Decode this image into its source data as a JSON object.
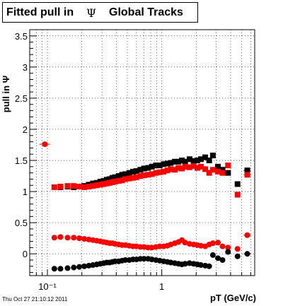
{
  "title": {
    "prefix": "Fitted pull in",
    "symbol": "Ψ",
    "suffix": "Global Tracks"
  },
  "footer": {
    "timestamp": "Thu Oct 27 21:10:12 2011"
  },
  "chart_data": {
    "type": "scatter",
    "xlabel": "pT (GeV/c)",
    "ylabel": "pull in Ψ",
    "xscale": "log",
    "xlim": [
      0.07,
      6.5
    ],
    "ylim": [
      -0.35,
      3.6
    ],
    "grid": true,
    "x_tick_labels": [
      "10⁻¹",
      "1"
    ],
    "y_tick_labels": [
      "0",
      "0.5",
      "1",
      "1.5",
      "2",
      "2.5",
      "3",
      "3.5"
    ],
    "series": [
      {
        "marker": "square",
        "color": "#000000",
        "points": [
          [
            0.13,
            1.07
          ],
          [
            0.15,
            1.08
          ],
          [
            0.17,
            1.07
          ],
          [
            0.19,
            1.08
          ],
          [
            0.21,
            1.09
          ],
          [
            0.23,
            1.11
          ],
          [
            0.25,
            1.13
          ],
          [
            0.27,
            1.14
          ],
          [
            0.29,
            1.16
          ],
          [
            0.31,
            1.17
          ],
          [
            0.33,
            1.19
          ],
          [
            0.35,
            1.2
          ],
          [
            0.37,
            1.22
          ],
          [
            0.39,
            1.23
          ],
          [
            0.42,
            1.25
          ],
          [
            0.45,
            1.27
          ],
          [
            0.48,
            1.28
          ],
          [
            0.52,
            1.3
          ],
          [
            0.56,
            1.32
          ],
          [
            0.6,
            1.33
          ],
          [
            0.65,
            1.35
          ],
          [
            0.7,
            1.37
          ],
          [
            0.76,
            1.38
          ],
          [
            0.82,
            1.4
          ],
          [
            0.89,
            1.42
          ],
          [
            0.96,
            1.42
          ],
          [
            1.04,
            1.44
          ],
          [
            1.12,
            1.45
          ],
          [
            1.2,
            1.46
          ],
          [
            1.3,
            1.48
          ],
          [
            1.4,
            1.48
          ],
          [
            1.5,
            1.5
          ],
          [
            1.6,
            1.48
          ],
          [
            1.75,
            1.52
          ],
          [
            1.9,
            1.49
          ],
          [
            2.05,
            1.5
          ],
          [
            2.2,
            1.52
          ],
          [
            2.4,
            1.55
          ],
          [
            2.6,
            1.5
          ],
          [
            2.8,
            1.58
          ],
          [
            3.1,
            1.4
          ],
          [
            3.4,
            1.35
          ],
          [
            3.8,
            1.3
          ],
          [
            4.6,
            1.12
          ],
          [
            5.6,
            1.34
          ]
        ]
      },
      {
        "marker": "square",
        "color": "#ff0000",
        "points": [
          [
            0.115,
            1.07
          ],
          [
            0.13,
            1.08
          ],
          [
            0.15,
            1.09
          ],
          [
            0.17,
            1.09
          ],
          [
            0.19,
            1.08
          ],
          [
            0.21,
            1.07
          ],
          [
            0.23,
            1.08
          ],
          [
            0.25,
            1.09
          ],
          [
            0.27,
            1.1
          ],
          [
            0.29,
            1.11
          ],
          [
            0.31,
            1.12
          ],
          [
            0.33,
            1.13
          ],
          [
            0.35,
            1.14
          ],
          [
            0.37,
            1.15
          ],
          [
            0.39,
            1.16
          ],
          [
            0.42,
            1.17
          ],
          [
            0.45,
            1.18
          ],
          [
            0.48,
            1.2
          ],
          [
            0.52,
            1.21
          ],
          [
            0.56,
            1.22
          ],
          [
            0.6,
            1.23
          ],
          [
            0.65,
            1.25
          ],
          [
            0.7,
            1.26
          ],
          [
            0.76,
            1.27
          ],
          [
            0.82,
            1.28
          ],
          [
            0.89,
            1.3
          ],
          [
            0.96,
            1.31
          ],
          [
            1.04,
            1.32
          ],
          [
            1.12,
            1.34
          ],
          [
            1.2,
            1.36
          ],
          [
            1.3,
            1.35
          ],
          [
            1.4,
            1.38
          ],
          [
            1.5,
            1.37
          ],
          [
            1.6,
            1.4
          ],
          [
            1.75,
            1.39
          ],
          [
            1.9,
            1.41
          ],
          [
            2.05,
            1.38
          ],
          [
            2.2,
            1.4
          ],
          [
            2.4,
            1.36
          ],
          [
            2.6,
            1.3
          ],
          [
            2.8,
            1.35
          ],
          [
            3.1,
            1.32
          ],
          [
            3.4,
            1.3
          ],
          [
            3.8,
            1.42
          ],
          [
            4.6,
            0.95
          ],
          [
            5.6,
            1.27
          ]
        ]
      },
      {
        "marker": "circle",
        "color": "#ff0000",
        "points": [
          [
            0.095,
            1.76
          ],
          [
            0.115,
            0.26
          ],
          [
            0.13,
            0.27
          ],
          [
            0.15,
            0.26
          ],
          [
            0.17,
            0.26
          ],
          [
            0.19,
            0.25
          ],
          [
            0.21,
            0.24
          ],
          [
            0.23,
            0.23
          ],
          [
            0.25,
            0.22
          ],
          [
            0.27,
            0.21
          ],
          [
            0.29,
            0.2
          ],
          [
            0.31,
            0.19
          ],
          [
            0.33,
            0.18
          ],
          [
            0.35,
            0.17
          ],
          [
            0.37,
            0.17
          ],
          [
            0.39,
            0.16
          ],
          [
            0.42,
            0.15
          ],
          [
            0.45,
            0.14
          ],
          [
            0.48,
            0.14
          ],
          [
            0.52,
            0.13
          ],
          [
            0.56,
            0.12
          ],
          [
            0.6,
            0.12
          ],
          [
            0.65,
            0.11
          ],
          [
            0.7,
            0.11
          ],
          [
            0.76,
            0.1
          ],
          [
            0.82,
            0.1
          ],
          [
            0.89,
            0.11
          ],
          [
            0.96,
            0.12
          ],
          [
            1.04,
            0.12
          ],
          [
            1.12,
            0.13
          ],
          [
            1.2,
            0.15
          ],
          [
            1.3,
            0.17
          ],
          [
            1.4,
            0.19
          ],
          [
            1.5,
            0.22
          ],
          [
            1.6,
            0.18
          ],
          [
            1.75,
            0.16
          ],
          [
            1.9,
            0.15
          ],
          [
            2.05,
            0.14
          ],
          [
            2.2,
            0.13
          ],
          [
            2.4,
            0.12
          ],
          [
            2.6,
            0.15
          ],
          [
            2.8,
            0.17
          ],
          [
            3.1,
            0.18
          ],
          [
            3.4,
            0.12
          ],
          [
            3.8,
            0.1
          ],
          [
            4.6,
            0.08
          ],
          [
            5.6,
            0.3
          ]
        ]
      },
      {
        "marker": "circle",
        "color": "#000000",
        "points": [
          [
            0.115,
            -0.24
          ],
          [
            0.13,
            -0.24
          ],
          [
            0.15,
            -0.23
          ],
          [
            0.17,
            -0.22
          ],
          [
            0.19,
            -0.21
          ],
          [
            0.21,
            -0.2
          ],
          [
            0.23,
            -0.19
          ],
          [
            0.25,
            -0.18
          ],
          [
            0.27,
            -0.17
          ],
          [
            0.29,
            -0.16
          ],
          [
            0.31,
            -0.15
          ],
          [
            0.33,
            -0.14
          ],
          [
            0.35,
            -0.14
          ],
          [
            0.37,
            -0.13
          ],
          [
            0.39,
            -0.12
          ],
          [
            0.42,
            -0.12
          ],
          [
            0.45,
            -0.11
          ],
          [
            0.48,
            -0.1
          ],
          [
            0.52,
            -0.1
          ],
          [
            0.56,
            -0.09
          ],
          [
            0.6,
            -0.09
          ],
          [
            0.65,
            -0.08
          ],
          [
            0.7,
            -0.08
          ],
          [
            0.76,
            -0.08
          ],
          [
            0.82,
            -0.09
          ],
          [
            0.89,
            -0.1
          ],
          [
            0.96,
            -0.11
          ],
          [
            1.04,
            -0.12
          ],
          [
            1.12,
            -0.13
          ],
          [
            1.2,
            -0.14
          ],
          [
            1.3,
            -0.15
          ],
          [
            1.4,
            -0.16
          ],
          [
            1.5,
            -0.17
          ],
          [
            1.6,
            -0.16
          ],
          [
            1.75,
            -0.15
          ],
          [
            1.9,
            -0.16
          ],
          [
            2.05,
            -0.17
          ],
          [
            2.2,
            -0.18
          ],
          [
            2.4,
            -0.19
          ],
          [
            2.6,
            -0.2
          ],
          [
            2.8,
            -0.02
          ],
          [
            3.1,
            -0.07
          ],
          [
            3.4,
            -0.1
          ],
          [
            3.8,
            0.03
          ],
          [
            4.6,
            -0.04
          ],
          [
            5.6,
            0.0
          ]
        ]
      }
    ]
  }
}
